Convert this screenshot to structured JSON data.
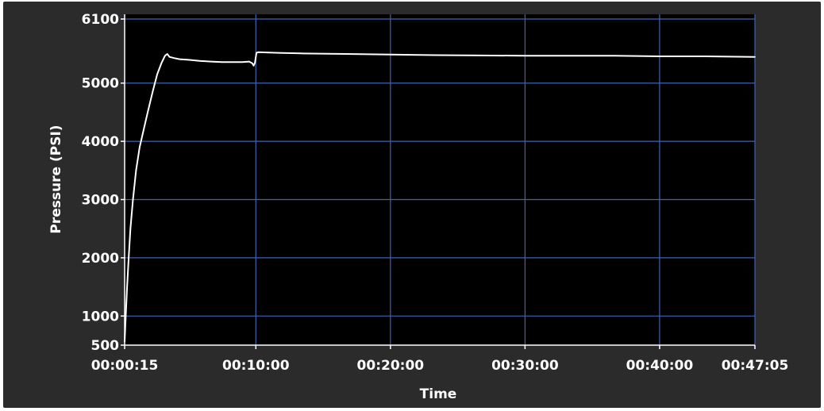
{
  "chart_data": {
    "type": "line",
    "title": "",
    "xlabel": "Time",
    "ylabel": "Pressure (PSI)",
    "x_unit": "seconds",
    "xlim": [
      15,
      2825
    ],
    "ylim": [
      500,
      6100
    ],
    "y_ticks": [
      {
        "value": 500,
        "label": "500"
      },
      {
        "value": 1000,
        "label": "1000"
      },
      {
        "value": 2000,
        "label": "2000"
      },
      {
        "value": 3000,
        "label": "3000"
      },
      {
        "value": 4000,
        "label": "4000"
      },
      {
        "value": 5000,
        "label": "5000"
      },
      {
        "value": 6100,
        "label": "6100"
      }
    ],
    "x_ticks": [
      {
        "value": 15,
        "label": "00:00:15"
      },
      {
        "value": 600,
        "label": "00:10:00"
      },
      {
        "value": 1200,
        "label": "00:20:00"
      },
      {
        "value": 1800,
        "label": "00:30:00"
      },
      {
        "value": 2400,
        "label": "00:40:00"
      },
      {
        "value": 2825,
        "label": "00:47:05"
      }
    ],
    "grid": true,
    "colors": {
      "plot_background": "#000000",
      "frame": "#2b2b2b",
      "grid": "#3f63b0",
      "line": "#ffffff",
      "text": "#ffffff"
    },
    "series": [
      {
        "x": [
          15,
          20,
          26,
          33,
          41,
          52,
          66,
          82,
          100,
          118,
          140,
          160,
          180,
          195,
          205,
          215,
          235,
          260,
          300,
          350,
          400,
          450,
          500,
          540,
          570,
          584,
          590,
          596,
          600,
          603,
          610,
          700,
          800,
          1000,
          1200,
          1400,
          1600,
          1800,
          2000,
          2200,
          2400,
          2600,
          2825
        ],
        "values": [
          560,
          1000,
          1500,
          2000,
          2500,
          3000,
          3500,
          3900,
          4200,
          4500,
          4850,
          5150,
          5350,
          5470,
          5500,
          5450,
          5430,
          5410,
          5400,
          5380,
          5370,
          5360,
          5360,
          5360,
          5370,
          5340,
          5300,
          5350,
          5450,
          5520,
          5530,
          5520,
          5510,
          5500,
          5490,
          5480,
          5475,
          5470,
          5470,
          5470,
          5460,
          5460,
          5450
        ]
      }
    ]
  }
}
